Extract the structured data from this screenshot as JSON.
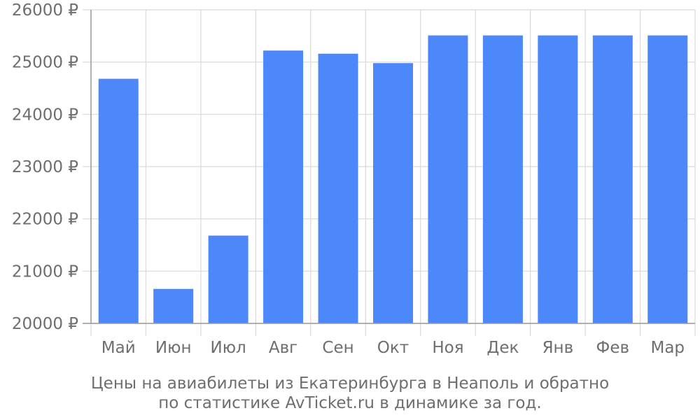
{
  "chart_data": {
    "type": "bar",
    "categories": [
      "Май",
      "Июн",
      "Июл",
      "Авг",
      "Сен",
      "Окт",
      "Ноя",
      "Дек",
      "Янв",
      "Фев",
      "Мар"
    ],
    "values": [
      24680,
      20660,
      21680,
      25220,
      25160,
      24980,
      25510,
      25510,
      25510,
      25510,
      25510
    ],
    "ylim": [
      20000,
      26000
    ],
    "yticks": [
      20000,
      21000,
      22000,
      23000,
      24000,
      25000,
      26000
    ],
    "ytick_labels": [
      "20000 ₽",
      "21000 ₽",
      "22000 ₽",
      "23000 ₽",
      "24000 ₽",
      "25000 ₽",
      "26000 ₽"
    ],
    "grid": true,
    "bar_color": "#4d88fa",
    "caption_line1": "Цены на авиабилеты из Екатеринбурга в Неаполь и обратно",
    "caption_line2": "по статистике AvTicket.ru в динамике за год."
  }
}
